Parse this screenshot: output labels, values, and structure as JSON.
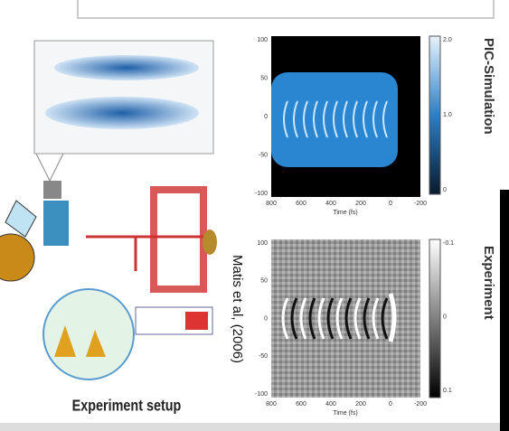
{
  "slide": {
    "side_labels": [
      "PIC-Simulation",
      "Experiment"
    ],
    "caption": "Experiment setup",
    "citation": "Matis et al, (2006)",
    "top_plot": {
      "yticks": [
        "100",
        "50",
        "0",
        "-50",
        "-100"
      ],
      "xticks": [
        "800",
        "600",
        "400",
        "200",
        "0",
        "-200"
      ],
      "xlabel": "Time (fs)",
      "cbar_ticks": [
        "2.0",
        "1.0",
        "0"
      ]
    },
    "bottom_plot": {
      "yticks": [
        "100",
        "50",
        "0",
        "-50",
        "-100"
      ],
      "xticks": [
        "800",
        "600",
        "400",
        "200",
        "0",
        "-200"
      ],
      "xlabel": "Time (fs)",
      "cbar_ticks": [
        "-0.1",
        "0",
        "0.1"
      ]
    }
  }
}
